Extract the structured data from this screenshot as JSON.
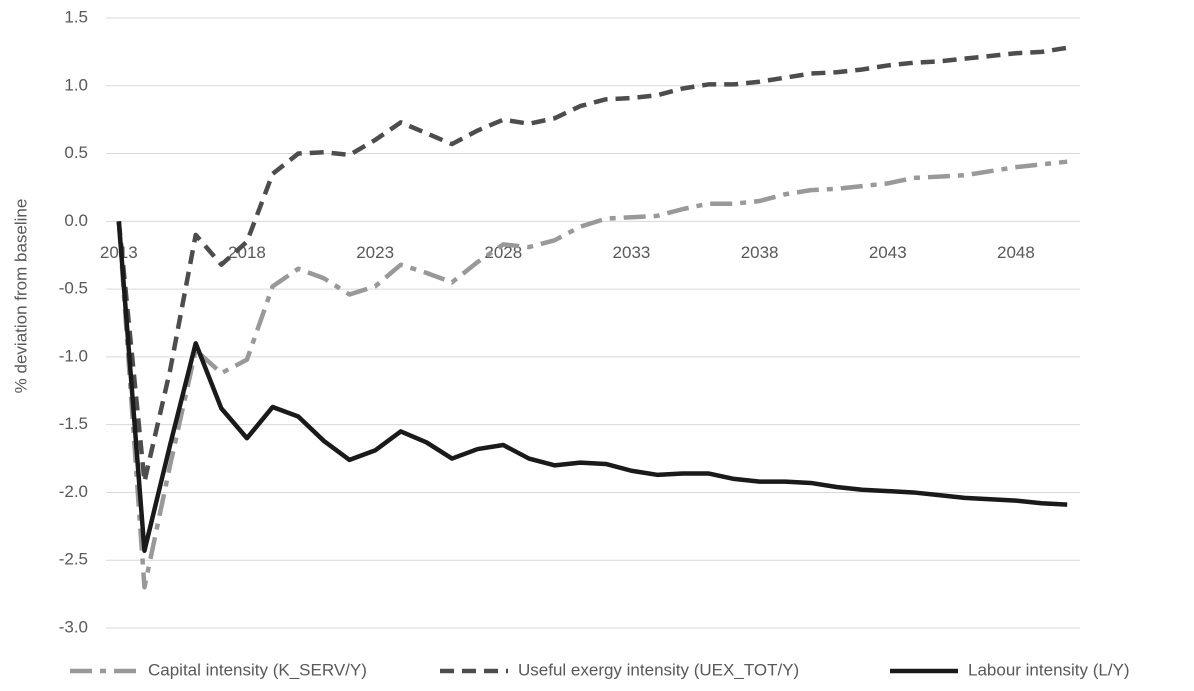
{
  "chart_data": {
    "type": "line",
    "y_label": "% deviation from baseline",
    "x": [
      2013,
      2014,
      2015,
      2016,
      2017,
      2018,
      2019,
      2020,
      2021,
      2022,
      2023,
      2024,
      2025,
      2026,
      2027,
      2028,
      2029,
      2030,
      2031,
      2032,
      2033,
      2034,
      2035,
      2036,
      2037,
      2038,
      2039,
      2040,
      2041,
      2042,
      2043,
      2044,
      2045,
      2046,
      2047,
      2048,
      2049,
      2050
    ],
    "xlim": [
      2012.5,
      2050.5
    ],
    "xticks": [
      2013,
      2018,
      2023,
      2028,
      2033,
      2038,
      2043,
      2048
    ],
    "ylim": [
      -3.0,
      1.5
    ],
    "yticks": [
      {
        "value": -3,
        "label": "-3.0"
      },
      -2.5,
      {
        "value": -2,
        "label": "-2.0"
      },
      -1.5,
      {
        "value": -1,
        "label": "-1.0"
      },
      -0.5,
      {
        "value": 0,
        "label": "0.0"
      },
      0.5,
      {
        "value": 1,
        "label": "1.0"
      },
      1.5
    ],
    "grid": true,
    "legend": "bottom",
    "series": [
      {
        "name": "Capital intensity (K_SERV/Y)",
        "color": "#999999",
        "dash": "dashdot",
        "values": [
          0,
          -2.7,
          -1.8,
          -0.95,
          -1.12,
          -1.02,
          -0.48,
          -0.35,
          -0.42,
          -0.54,
          -0.48,
          -0.32,
          -0.38,
          -0.45,
          -0.3,
          -0.17,
          -0.19,
          -0.14,
          -0.04,
          0.02,
          0.03,
          0.04,
          0.09,
          0.13,
          0.13,
          0.15,
          0.2,
          0.23,
          0.24,
          0.26,
          0.28,
          0.32,
          0.33,
          0.34,
          0.37,
          0.4,
          0.42,
          0.44
        ]
      },
      {
        "name": "Useful exergy intensity (UEX_TOT/Y)",
        "color": "#4d4d4d",
        "dash": "dash",
        "values": [
          0,
          -1.92,
          -1.1,
          -0.1,
          -0.32,
          -0.15,
          0.35,
          0.5,
          0.51,
          0.49,
          0.6,
          0.73,
          0.65,
          0.57,
          0.67,
          0.75,
          0.72,
          0.76,
          0.85,
          0.9,
          0.91,
          0.93,
          0.98,
          1.01,
          1.01,
          1.03,
          1.06,
          1.09,
          1.1,
          1.12,
          1.15,
          1.17,
          1.18,
          1.2,
          1.22,
          1.24,
          1.25,
          1.28
        ]
      },
      {
        "name": "Labour intensity (L/Y)",
        "color": "#1a1a1a",
        "dash": "solid",
        "values": [
          0,
          -2.43,
          -1.65,
          -0.9,
          -1.38,
          -1.6,
          -1.37,
          -1.44,
          -1.62,
          -1.76,
          -1.69,
          -1.55,
          -1.63,
          -1.75,
          -1.68,
          -1.65,
          -1.75,
          -1.8,
          -1.78,
          -1.79,
          -1.84,
          -1.87,
          -1.86,
          -1.86,
          -1.9,
          -1.92,
          -1.92,
          -1.93,
          -1.96,
          -1.98,
          -1.99,
          -2.0,
          -2.02,
          -2.04,
          -2.05,
          -2.06,
          -2.08,
          -2.09
        ]
      }
    ]
  }
}
